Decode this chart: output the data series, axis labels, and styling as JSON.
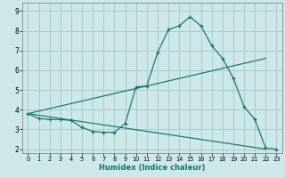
{
  "xlabel": "Humidex (Indice chaleur)",
  "xlim": [
    -0.5,
    23.5
  ],
  "ylim": [
    1.8,
    9.4
  ],
  "yticks": [
    2,
    3,
    4,
    5,
    6,
    7,
    8,
    9
  ],
  "xticks": [
    0,
    1,
    2,
    3,
    4,
    5,
    6,
    7,
    8,
    9,
    10,
    11,
    12,
    13,
    14,
    15,
    16,
    17,
    18,
    19,
    20,
    21,
    22,
    23
  ],
  "bg_color": "#cce8e8",
  "grid_color": "#aacccc",
  "line_color": "#1a7070",
  "line1_x": [
    0,
    1,
    2,
    3,
    4,
    5,
    6,
    7,
    8,
    9,
    10,
    11,
    12,
    13,
    14,
    15,
    16,
    17,
    18,
    19,
    20,
    21,
    22,
    23
  ],
  "line1_y": [
    3.8,
    3.55,
    3.5,
    3.5,
    3.45,
    3.1,
    2.9,
    2.85,
    2.85,
    3.3,
    5.15,
    5.2,
    6.9,
    8.05,
    8.25,
    8.7,
    8.25,
    7.25,
    6.6,
    5.6,
    4.15,
    3.5,
    2.05,
    2.0
  ],
  "line2_x": [
    0,
    22
  ],
  "line2_y": [
    3.8,
    6.6
  ],
  "line3_x": [
    0,
    22
  ],
  "line3_y": [
    3.8,
    2.0
  ],
  "marker": "+"
}
